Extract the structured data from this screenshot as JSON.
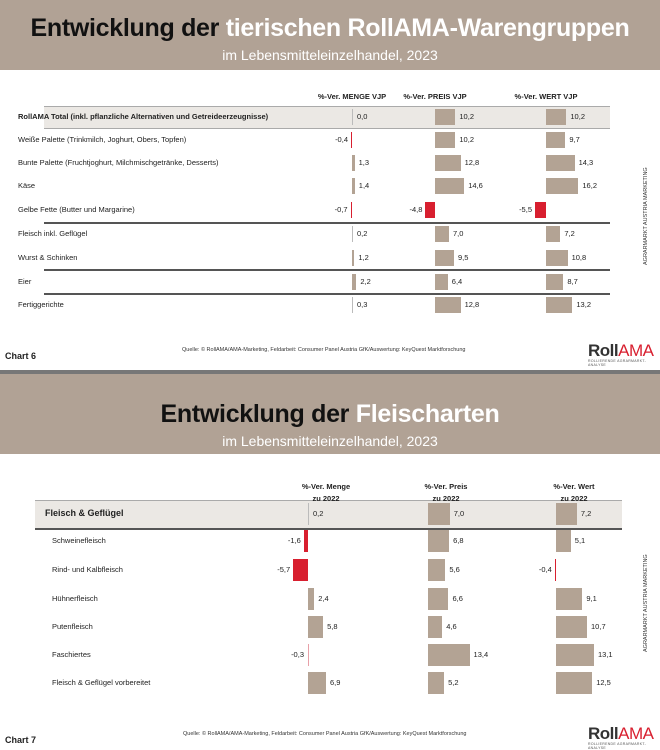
{
  "colors": {
    "banner": "#b1a295",
    "bar_positive": "#b3a394",
    "bar_negative": "#d81f2f",
    "highlight_row": "#ebe8e4"
  },
  "chart_data": [
    {
      "type": "bar",
      "title_dark": "Entwicklung der",
      "title_light": "tierischen RollAMA-Warengruppen",
      "subtitle": "im Lebensmitteleinzelhandel, 2023",
      "columns": [
        "%-Ver. MENGE VJP",
        "%-Ver. PREIS VJP",
        "%-Ver. WERT VJP"
      ],
      "categories": [
        "RollAMA Total (inkl. pflanzliche Alternativen und Getreideerzeugnisse)",
        "Weiße Palette (Trinkmilch, Joghurt, Obers, Topfen)",
        "Bunte Palette (Fruchtjoghurt, Milchmischgetränke, Desserts)",
        "Käse",
        "Gelbe Fette (Butter und Margarine)",
        "Fleisch inkl. Geflügel",
        "Wurst & Schinken",
        "Eier",
        "Fertiggerichte"
      ],
      "labels": [
        [
          "0,0",
          "10,2",
          "10,2"
        ],
        [
          "-0,4",
          "10,2",
          "9,7"
        ],
        [
          "1,3",
          "12,8",
          "14,3"
        ],
        [
          "1,4",
          "14,6",
          "16,2"
        ],
        [
          "-0,7",
          "-4,8",
          "-5,5"
        ],
        [
          "0,2",
          "7,0",
          "7,2"
        ],
        [
          "1,2",
          "9,5",
          "10,8"
        ],
        [
          "2,2",
          "6,4",
          "8,7"
        ],
        [
          "0,3",
          "12,8",
          "13,2"
        ]
      ],
      "series": [
        {
          "name": "%-Ver. MENGE VJP",
          "values": [
            0.0,
            -0.4,
            1.3,
            1.4,
            -0.7,
            0.2,
            1.2,
            2.2,
            0.3
          ]
        },
        {
          "name": "%-Ver. PREIS VJP",
          "values": [
            10.2,
            10.2,
            12.8,
            14.6,
            -4.8,
            7.0,
            9.5,
            6.4,
            12.8
          ]
        },
        {
          "name": "%-Ver. WERT VJP",
          "values": [
            10.2,
            9.7,
            14.3,
            16.2,
            -5.5,
            7.2,
            10.8,
            8.7,
            13.2
          ]
        }
      ],
      "highlight_row": 0,
      "chart_label": "Chart 6",
      "source": "Quelle: © RollAMA/AMA-Marketing, Feldarbeit: Consumer Panel Austria GfK/Auswertung: KeyQuest Marktforschung"
    },
    {
      "type": "bar",
      "title_dark": "Entwicklung der",
      "title_light": "Fleischarten",
      "subtitle": "im Lebensmitteleinzelhandel, 2023",
      "columns": [
        "%-Ver. Menge",
        "%-Ver. Preis",
        "%-Ver. Wert"
      ],
      "columns_sub": "zu 2022",
      "categories": [
        "Fleisch & Geflügel",
        "Schweinefleisch",
        "Rind- und Kalbfleisch",
        "Hühnerfleisch",
        "Putenfleisch",
        "Faschiertes",
        "Fleisch & Geflügel vorbereitet"
      ],
      "labels": [
        [
          "0,2",
          "7,0",
          "7,2"
        ],
        [
          "-1,6",
          "6,8",
          "5,1"
        ],
        [
          "-5,7",
          "5,6",
          "-0,4"
        ],
        [
          "2,4",
          "6,6",
          "9,1"
        ],
        [
          "5,8",
          "4,6",
          "10,7"
        ],
        [
          "-0,3",
          "13,4",
          "13,1"
        ],
        [
          "6,9",
          "5,2",
          "12,5"
        ]
      ],
      "series": [
        {
          "name": "%-Ver. Menge zu 2022",
          "values": [
            0.2,
            -1.6,
            -5.7,
            2.4,
            5.8,
            -0.3,
            6.9
          ]
        },
        {
          "name": "%-Ver. Preis zu 2022",
          "values": [
            7.0,
            6.8,
            5.6,
            6.6,
            4.6,
            13.4,
            5.2
          ]
        },
        {
          "name": "%-Ver. Wert zu 2022",
          "values": [
            7.2,
            5.1,
            -0.4,
            9.1,
            10.7,
            13.1,
            12.5
          ]
        }
      ],
      "highlight_row": 0,
      "chart_label": "Chart 7",
      "source": "Quelle: © RollAMA/AMA-Marketing, Feldarbeit: Consumer Panel Austria GfK/Auswertung: KeyQuest Marktforschung"
    }
  ],
  "side_text": "AGRARMARKT AUSTRIA MARKETING",
  "logo": {
    "roll": "Roll",
    "ama": "AMA",
    "tagline": "ROLLIERENDE AGRARMARKT-ANALYSE"
  }
}
